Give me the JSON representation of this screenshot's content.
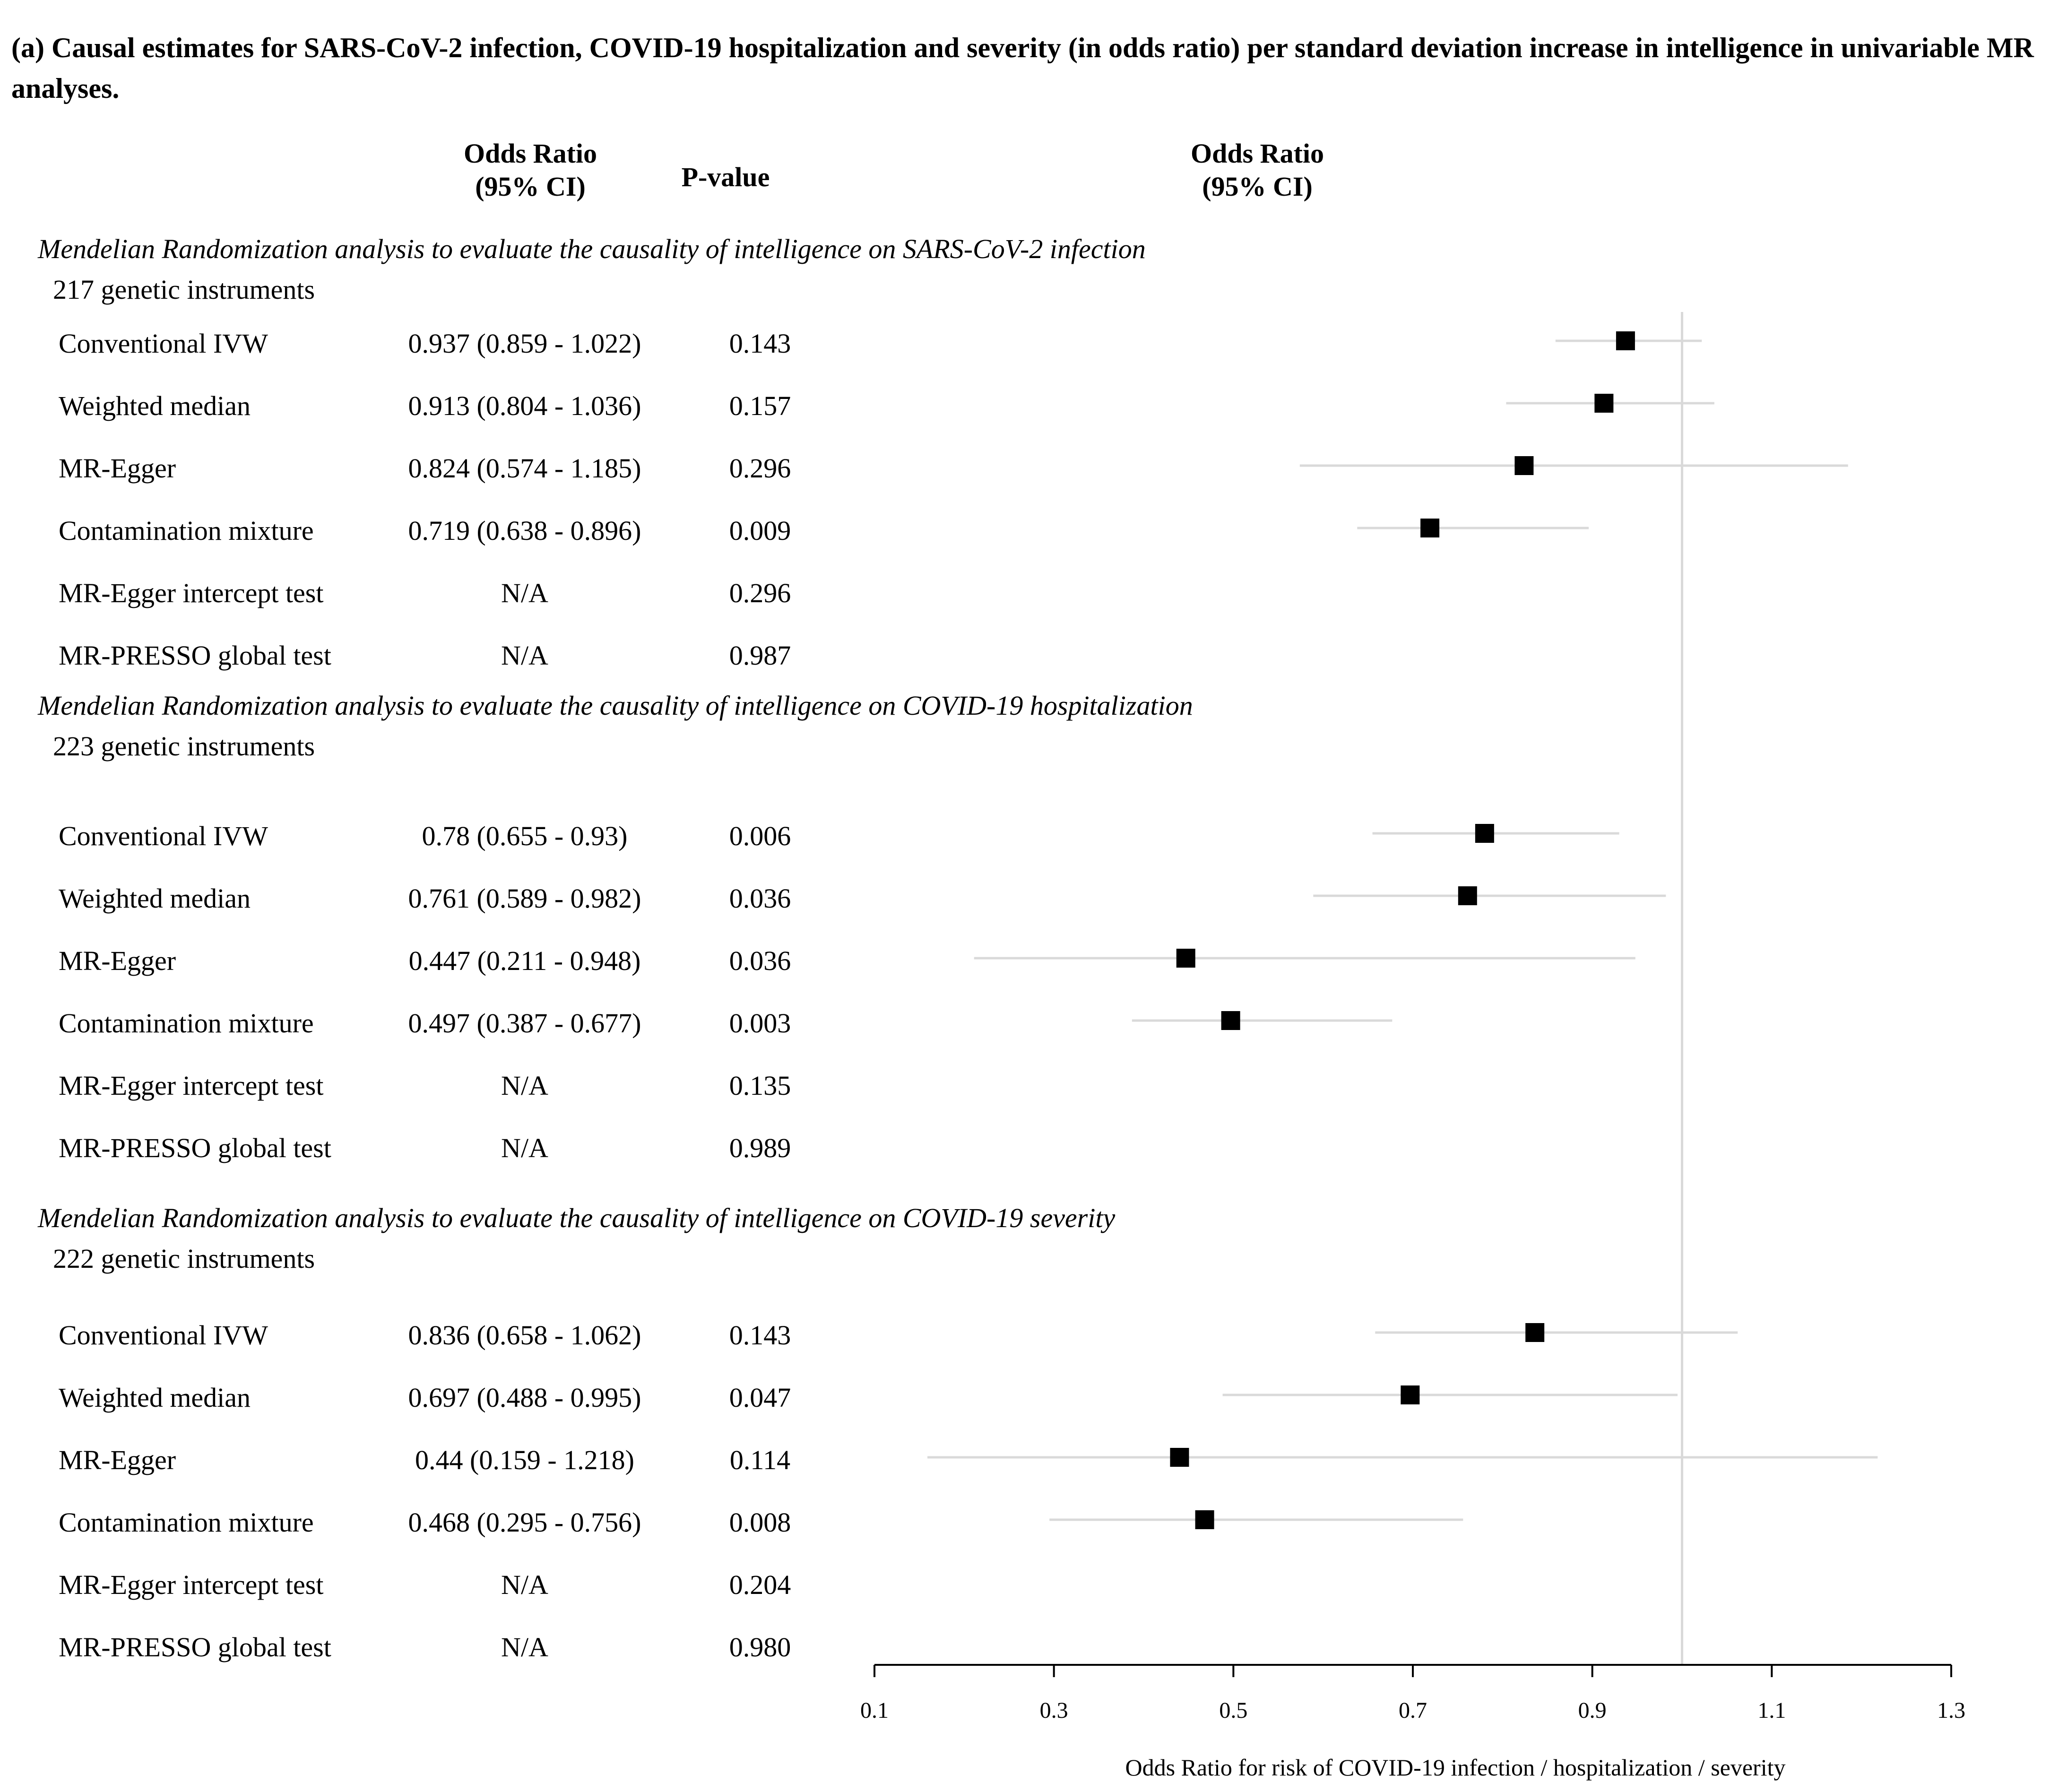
{
  "title": "(a) Causal estimates for SARS-CoV-2 infection, COVID-19 hospitalization and severity (in odds ratio) per standard deviation increase in intelligence in univariable MR analyses.",
  "headers": {
    "or_col": "Odds Ratio\n(95% CI)",
    "p_col": "P-value",
    "plot_col": "Odds Ratio\n(95% CI)"
  },
  "sections": [
    {
      "label": "Mendelian Randomization analysis to evaluate the causality of intelligence on SARS-CoV-2 infection",
      "instruments": "217 genetic instruments",
      "rows": [
        {
          "method": "Conventional IVW",
          "or_text": "0.937 (0.859 - 1.022)",
          "p": "0.143"
        },
        {
          "method": "Weighted median",
          "or_text": "0.913 (0.804 - 1.036)",
          "p": "0.157"
        },
        {
          "method": "MR-Egger",
          "or_text": "0.824 (0.574 - 1.185)",
          "p": "0.296"
        },
        {
          "method": "Contamination mixture",
          "or_text": "0.719 (0.638 - 0.896)",
          "p": "0.009"
        },
        {
          "method": "MR-Egger intercept test",
          "or_text": "N/A",
          "p": "0.296"
        },
        {
          "method": "MR-PRESSO global test",
          "or_text": "N/A",
          "p": "0.987"
        }
      ]
    },
    {
      "label": "Mendelian Randomization analysis to evaluate the causality of intelligence on COVID-19 hospitalization",
      "instruments": "223 genetic instruments",
      "rows": [
        {
          "method": "Conventional IVW",
          "or_text": "0.78 (0.655 - 0.93)",
          "p": "0.006"
        },
        {
          "method": "Weighted median",
          "or_text": "0.761 (0.589 - 0.982)",
          "p": "0.036"
        },
        {
          "method": "MR-Egger",
          "or_text": "0.447 (0.211 - 0.948)",
          "p": "0.036"
        },
        {
          "method": "Contamination mixture",
          "or_text": "0.497 (0.387 - 0.677)",
          "p": "0.003"
        },
        {
          "method": "MR-Egger intercept test",
          "or_text": "N/A",
          "p": "0.135"
        },
        {
          "method": "MR-PRESSO global test",
          "or_text": "N/A",
          "p": "0.989"
        }
      ]
    },
    {
      "label": "Mendelian Randomization analysis to evaluate the causality of intelligence on COVID-19 severity",
      "instruments": "222 genetic instruments",
      "rows": [
        {
          "method": "Conventional IVW",
          "or_text": "0.836 (0.658 - 1.062)",
          "p": "0.143"
        },
        {
          "method": "Weighted median",
          "or_text": "0.697 (0.488 - 0.995)",
          "p": "0.047"
        },
        {
          "method": "MR-Egger",
          "or_text": "0.44 (0.159 - 1.218)",
          "p": "0.114"
        },
        {
          "method": "Contamination mixture",
          "or_text": "0.468 (0.295 - 0.756)",
          "p": "0.008"
        },
        {
          "method": "MR-Egger intercept test",
          "or_text": "N/A",
          "p": "0.204"
        },
        {
          "method": "MR-PRESSO global test",
          "or_text": "N/A",
          "p": "0.980"
        }
      ]
    }
  ],
  "chart_data": {
    "type": "forest",
    "xlabel": "Odds Ratio for risk of COVID-19 infection / hospitalization / severity",
    "xlim": [
      0.1,
      1.3
    ],
    "xticks": [
      0.1,
      0.3,
      0.5,
      0.7,
      0.9,
      1.1,
      1.3
    ],
    "reference_line": 1.0,
    "colors": {
      "marker": "#000000",
      "ci": "#d9d9d9",
      "axis": "#000000",
      "ref": "#d9d9d9"
    },
    "series": [
      {
        "name": "SARS-CoV-2 infection",
        "points": [
          {
            "method": "Conventional IVW",
            "or": 0.937,
            "lo": 0.859,
            "hi": 1.022
          },
          {
            "method": "Weighted median",
            "or": 0.913,
            "lo": 0.804,
            "hi": 1.036
          },
          {
            "method": "MR-Egger",
            "or": 0.824,
            "lo": 0.574,
            "hi": 1.185
          },
          {
            "method": "Contamination mixture",
            "or": 0.719,
            "lo": 0.638,
            "hi": 0.896
          }
        ]
      },
      {
        "name": "COVID-19 hospitalization",
        "points": [
          {
            "method": "Conventional IVW",
            "or": 0.78,
            "lo": 0.655,
            "hi": 0.93
          },
          {
            "method": "Weighted median",
            "or": 0.761,
            "lo": 0.589,
            "hi": 0.982
          },
          {
            "method": "MR-Egger",
            "or": 0.447,
            "lo": 0.211,
            "hi": 0.948
          },
          {
            "method": "Contamination mixture",
            "or": 0.497,
            "lo": 0.387,
            "hi": 0.677
          }
        ]
      },
      {
        "name": "COVID-19 severity",
        "points": [
          {
            "method": "Conventional IVW",
            "or": 0.836,
            "lo": 0.658,
            "hi": 1.062
          },
          {
            "method": "Weighted median",
            "or": 0.697,
            "lo": 0.488,
            "hi": 0.995
          },
          {
            "method": "MR-Egger",
            "or": 0.44,
            "lo": 0.159,
            "hi": 1.218
          },
          {
            "method": "Contamination mixture",
            "or": 0.468,
            "lo": 0.295,
            "hi": 0.756
          }
        ]
      }
    ]
  }
}
